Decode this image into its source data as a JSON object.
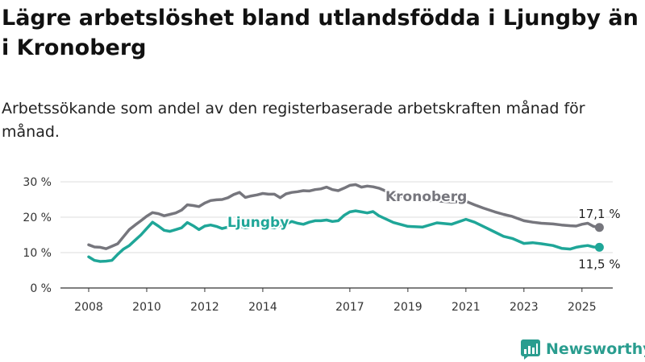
{
  "title": "Lägre arbetslöshet bland utlandsfödda i Ljungby än i Kronoberg",
  "subtitle": "Arbetssökande som andel av den registerbaserade arbetskraften månad för månad.",
  "brand": {
    "name": "Newsworthy",
    "icon": "newsworthy-logo-icon"
  },
  "colors": {
    "kronoberg": "#76767d",
    "ljungby": "#1fa698",
    "grid": "#dddddd",
    "axis": "#333333",
    "text": "#333333"
  },
  "chart_data": {
    "type": "line",
    "title": "Lägre arbetslöshet bland utlandsfödda i Ljungby än i Kronoberg",
    "subtitle": "Arbetssökande som andel av den registerbaserade arbetskraften månad för månad.",
    "xlabel": "",
    "ylabel": "",
    "xlim": [
      2008,
      2025.7
    ],
    "ylim": [
      0,
      30
    ],
    "yticks": [
      0,
      10,
      20,
      30
    ],
    "ytick_labels": [
      "0 %",
      "10 %",
      "20 %",
      "30 %"
    ],
    "xticks": [
      2008,
      2010,
      2012,
      2014,
      2017,
      2019,
      2021,
      2023,
      2025
    ],
    "xtick_labels": [
      "2008",
      "2010",
      "2012",
      "2014",
      "2017",
      "2019",
      "2021",
      "2023",
      "2025"
    ],
    "grid": true,
    "series": [
      {
        "name": "Kronoberg",
        "color": "#76767d",
        "end_label": "17,1 %",
        "points": [
          [
            2008.0,
            12.2
          ],
          [
            2008.2,
            11.6
          ],
          [
            2008.4,
            11.5
          ],
          [
            2008.6,
            11.1
          ],
          [
            2008.8,
            11.8
          ],
          [
            2009.0,
            12.5
          ],
          [
            2009.2,
            14.5
          ],
          [
            2009.4,
            16.5
          ],
          [
            2009.6,
            17.8
          ],
          [
            2009.8,
            19.0
          ],
          [
            2010.0,
            20.3
          ],
          [
            2010.2,
            21.3
          ],
          [
            2010.4,
            21.0
          ],
          [
            2010.6,
            20.4
          ],
          [
            2010.8,
            20.8
          ],
          [
            2011.0,
            21.2
          ],
          [
            2011.2,
            22.0
          ],
          [
            2011.4,
            23.5
          ],
          [
            2011.6,
            23.3
          ],
          [
            2011.8,
            23.0
          ],
          [
            2012.0,
            24.0
          ],
          [
            2012.2,
            24.7
          ],
          [
            2012.4,
            24.9
          ],
          [
            2012.6,
            25.0
          ],
          [
            2012.8,
            25.5
          ],
          [
            2013.0,
            26.4
          ],
          [
            2013.2,
            27.0
          ],
          [
            2013.4,
            25.6
          ],
          [
            2013.6,
            26.0
          ],
          [
            2013.8,
            26.3
          ],
          [
            2014.0,
            26.7
          ],
          [
            2014.2,
            26.5
          ],
          [
            2014.4,
            26.5
          ],
          [
            2014.6,
            25.5
          ],
          [
            2014.8,
            26.6
          ],
          [
            2015.0,
            27.0
          ],
          [
            2015.2,
            27.2
          ],
          [
            2015.4,
            27.5
          ],
          [
            2015.6,
            27.4
          ],
          [
            2015.8,
            27.8
          ],
          [
            2016.0,
            28.0
          ],
          [
            2016.2,
            28.5
          ],
          [
            2016.4,
            27.8
          ],
          [
            2016.6,
            27.5
          ],
          [
            2016.8,
            28.2
          ],
          [
            2017.0,
            29.0
          ],
          [
            2017.2,
            29.2
          ],
          [
            2017.4,
            28.5
          ],
          [
            2017.6,
            28.8
          ],
          [
            2017.8,
            28.6
          ],
          [
            2018.0,
            28.2
          ],
          [
            2018.5,
            26.5
          ],
          [
            2019.0,
            25.2
          ],
          [
            2019.5,
            24.8
          ],
          [
            2020.0,
            24.6
          ],
          [
            2020.5,
            24.3
          ],
          [
            2021.0,
            24.5
          ],
          [
            2021.3,
            23.5
          ],
          [
            2021.6,
            22.6
          ],
          [
            2022.0,
            21.5
          ],
          [
            2022.3,
            20.8
          ],
          [
            2022.6,
            20.2
          ],
          [
            2023.0,
            19.0
          ],
          [
            2023.3,
            18.6
          ],
          [
            2023.6,
            18.3
          ],
          [
            2024.0,
            18.1
          ],
          [
            2024.3,
            17.8
          ],
          [
            2024.6,
            17.6
          ],
          [
            2024.8,
            17.5
          ],
          [
            2025.0,
            18.0
          ],
          [
            2025.2,
            18.3
          ],
          [
            2025.4,
            17.4
          ],
          [
            2025.6,
            17.1
          ]
        ]
      },
      {
        "name": "Ljungby",
        "color": "#1fa698",
        "end_label": "11,5 %",
        "points": [
          [
            2008.0,
            8.8
          ],
          [
            2008.2,
            7.8
          ],
          [
            2008.4,
            7.5
          ],
          [
            2008.6,
            7.6
          ],
          [
            2008.8,
            7.8
          ],
          [
            2009.0,
            9.5
          ],
          [
            2009.2,
            11.0
          ],
          [
            2009.4,
            12.0
          ],
          [
            2009.6,
            13.5
          ],
          [
            2009.8,
            15.0
          ],
          [
            2010.0,
            16.8
          ],
          [
            2010.2,
            18.6
          ],
          [
            2010.4,
            17.5
          ],
          [
            2010.6,
            16.3
          ],
          [
            2010.8,
            16.0
          ],
          [
            2011.0,
            16.5
          ],
          [
            2011.2,
            17.0
          ],
          [
            2011.4,
            18.5
          ],
          [
            2011.6,
            17.6
          ],
          [
            2011.8,
            16.5
          ],
          [
            2012.0,
            17.5
          ],
          [
            2012.2,
            17.8
          ],
          [
            2012.4,
            17.4
          ],
          [
            2012.6,
            16.8
          ],
          [
            2012.8,
            17.2
          ],
          [
            2013.0,
            17.6
          ],
          [
            2013.2,
            17.5
          ],
          [
            2013.4,
            17.0
          ],
          [
            2013.6,
            17.3
          ],
          [
            2013.8,
            17.5
          ],
          [
            2014.0,
            17.8
          ],
          [
            2014.2,
            17.3
          ],
          [
            2014.4,
            17.0
          ],
          [
            2014.6,
            17.6
          ],
          [
            2014.8,
            18.1
          ],
          [
            2015.0,
            18.8
          ],
          [
            2015.2,
            18.3
          ],
          [
            2015.4,
            18.0
          ],
          [
            2015.6,
            18.6
          ],
          [
            2015.8,
            19.0
          ],
          [
            2016.0,
            19.0
          ],
          [
            2016.2,
            19.2
          ],
          [
            2016.4,
            18.8
          ],
          [
            2016.6,
            19.0
          ],
          [
            2016.8,
            20.5
          ],
          [
            2017.0,
            21.5
          ],
          [
            2017.2,
            21.8
          ],
          [
            2017.4,
            21.5
          ],
          [
            2017.6,
            21.2
          ],
          [
            2017.8,
            21.6
          ],
          [
            2018.0,
            20.4
          ],
          [
            2018.5,
            18.5
          ],
          [
            2019.0,
            17.4
          ],
          [
            2019.5,
            17.2
          ],
          [
            2020.0,
            18.4
          ],
          [
            2020.5,
            18.0
          ],
          [
            2021.0,
            19.4
          ],
          [
            2021.3,
            18.6
          ],
          [
            2021.6,
            17.4
          ],
          [
            2022.0,
            15.8
          ],
          [
            2022.3,
            14.6
          ],
          [
            2022.6,
            14.0
          ],
          [
            2023.0,
            12.6
          ],
          [
            2023.3,
            12.8
          ],
          [
            2023.6,
            12.5
          ],
          [
            2024.0,
            12.0
          ],
          [
            2024.3,
            11.2
          ],
          [
            2024.6,
            11.0
          ],
          [
            2024.8,
            11.5
          ],
          [
            2025.0,
            11.8
          ],
          [
            2025.2,
            12.0
          ],
          [
            2025.4,
            11.6
          ],
          [
            2025.6,
            11.5
          ]
        ]
      }
    ]
  }
}
